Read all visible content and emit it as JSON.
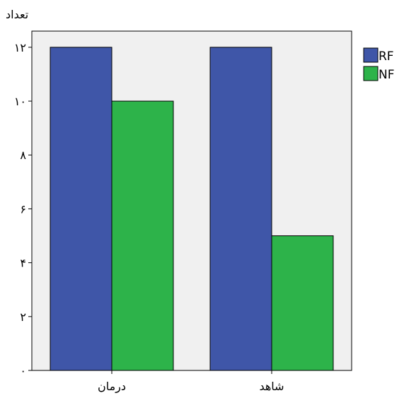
{
  "chart_data": {
    "type": "bar",
    "ylabel": "تعداد",
    "categories": [
      "درمان",
      "شاهد"
    ],
    "series": [
      {
        "name": "RF",
        "values": [
          12,
          12
        ],
        "color": "#3f56a8"
      },
      {
        "name": "NF",
        "values": [
          10,
          5
        ],
        "color": "#2db34a"
      }
    ],
    "ylim": [
      0,
      12.6
    ],
    "yticks": [
      0,
      2,
      4,
      6,
      8,
      10,
      12
    ],
    "ytick_labels": [
      "۰",
      "۲",
      "۴",
      "۶",
      "۸",
      "۱۰",
      "۱۲"
    ],
    "legend_position": "right",
    "grid": false,
    "plot_background": "#f0f0f0"
  }
}
